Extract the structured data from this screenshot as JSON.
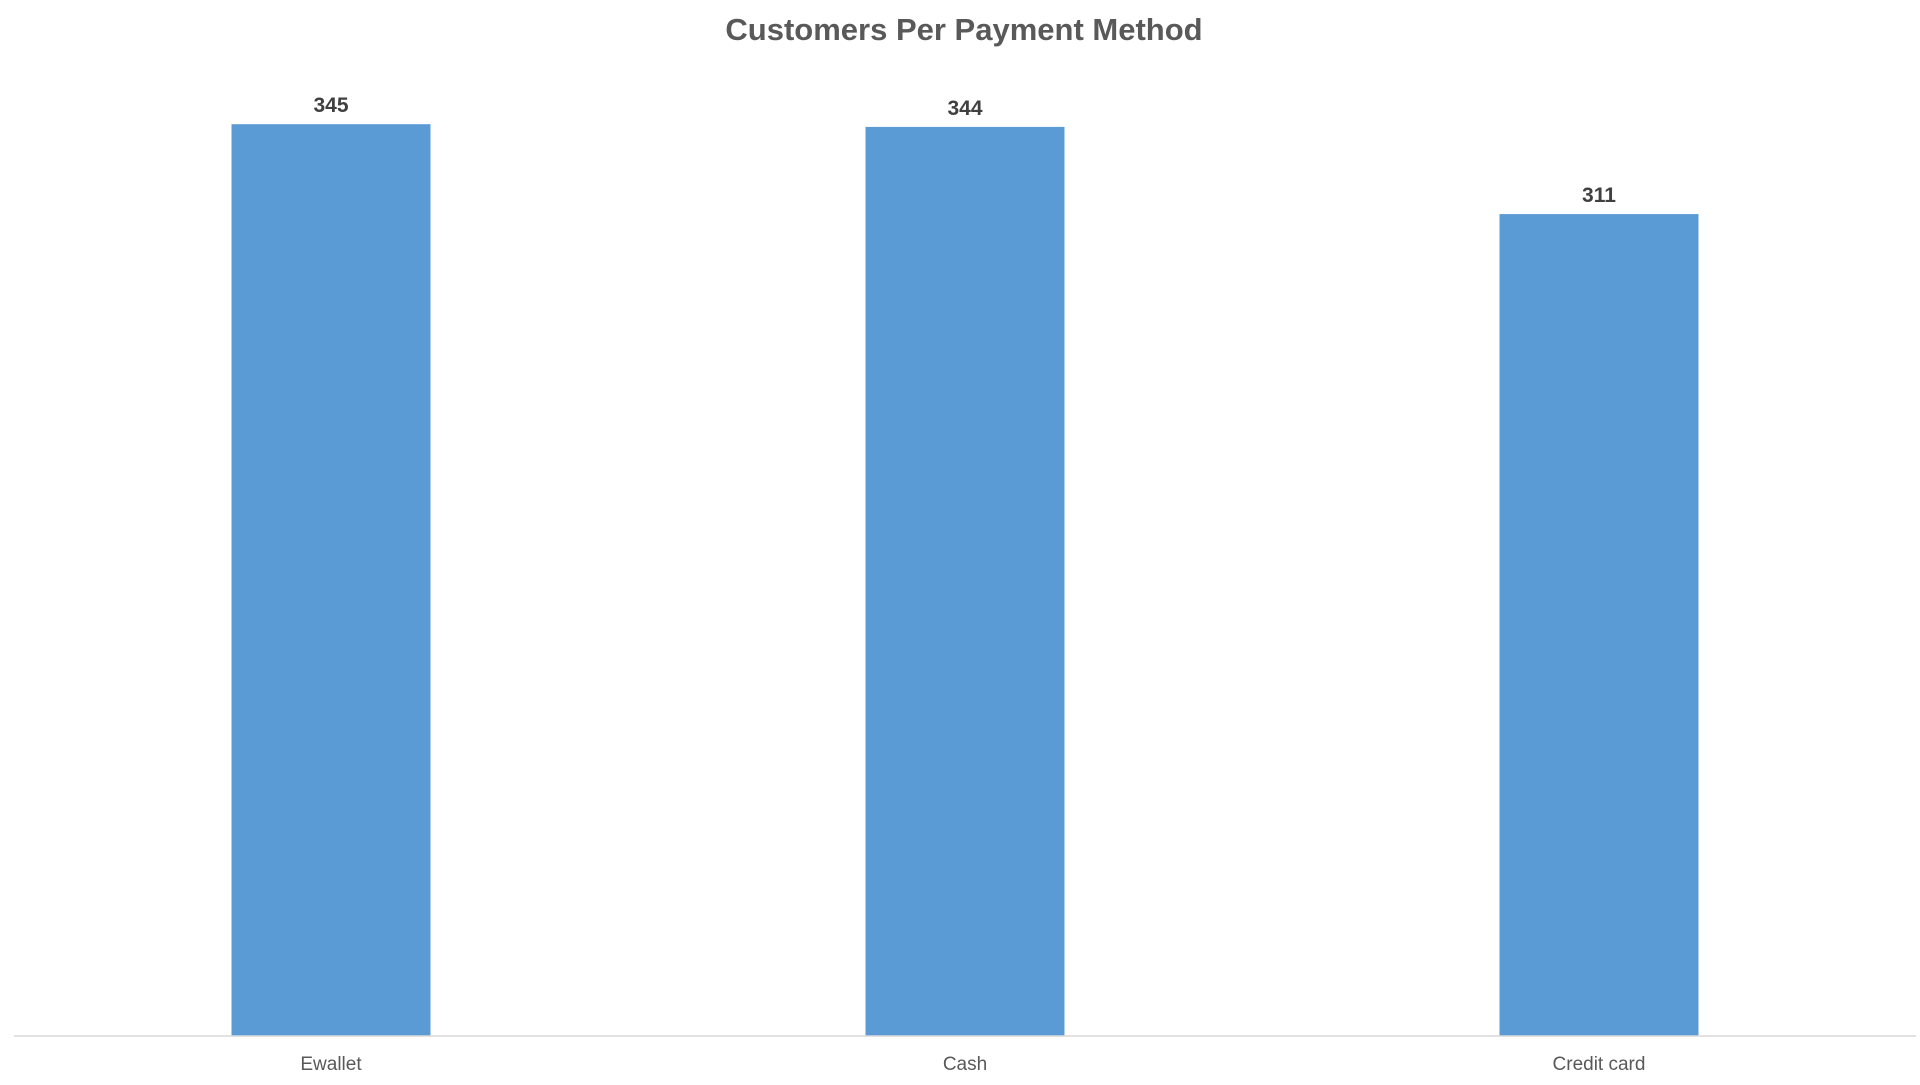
{
  "chart_data": {
    "type": "bar",
    "title": "Customers Per Payment Method",
    "xlabel": "",
    "ylabel": "",
    "categories": [
      "Ewallet",
      "Cash",
      "Credit card"
    ],
    "values": [
      345,
      344,
      311
    ],
    "data_labels": [
      "345",
      "344",
      "311"
    ],
    "ylim": [
      0,
      350
    ],
    "grid": false,
    "legend": "none",
    "colors": {
      "bar": "#5B9BD5",
      "title": "#595959",
      "data_label": "#404040",
      "tick_label": "#595959",
      "axis_line": "#D9D9D9"
    }
  }
}
